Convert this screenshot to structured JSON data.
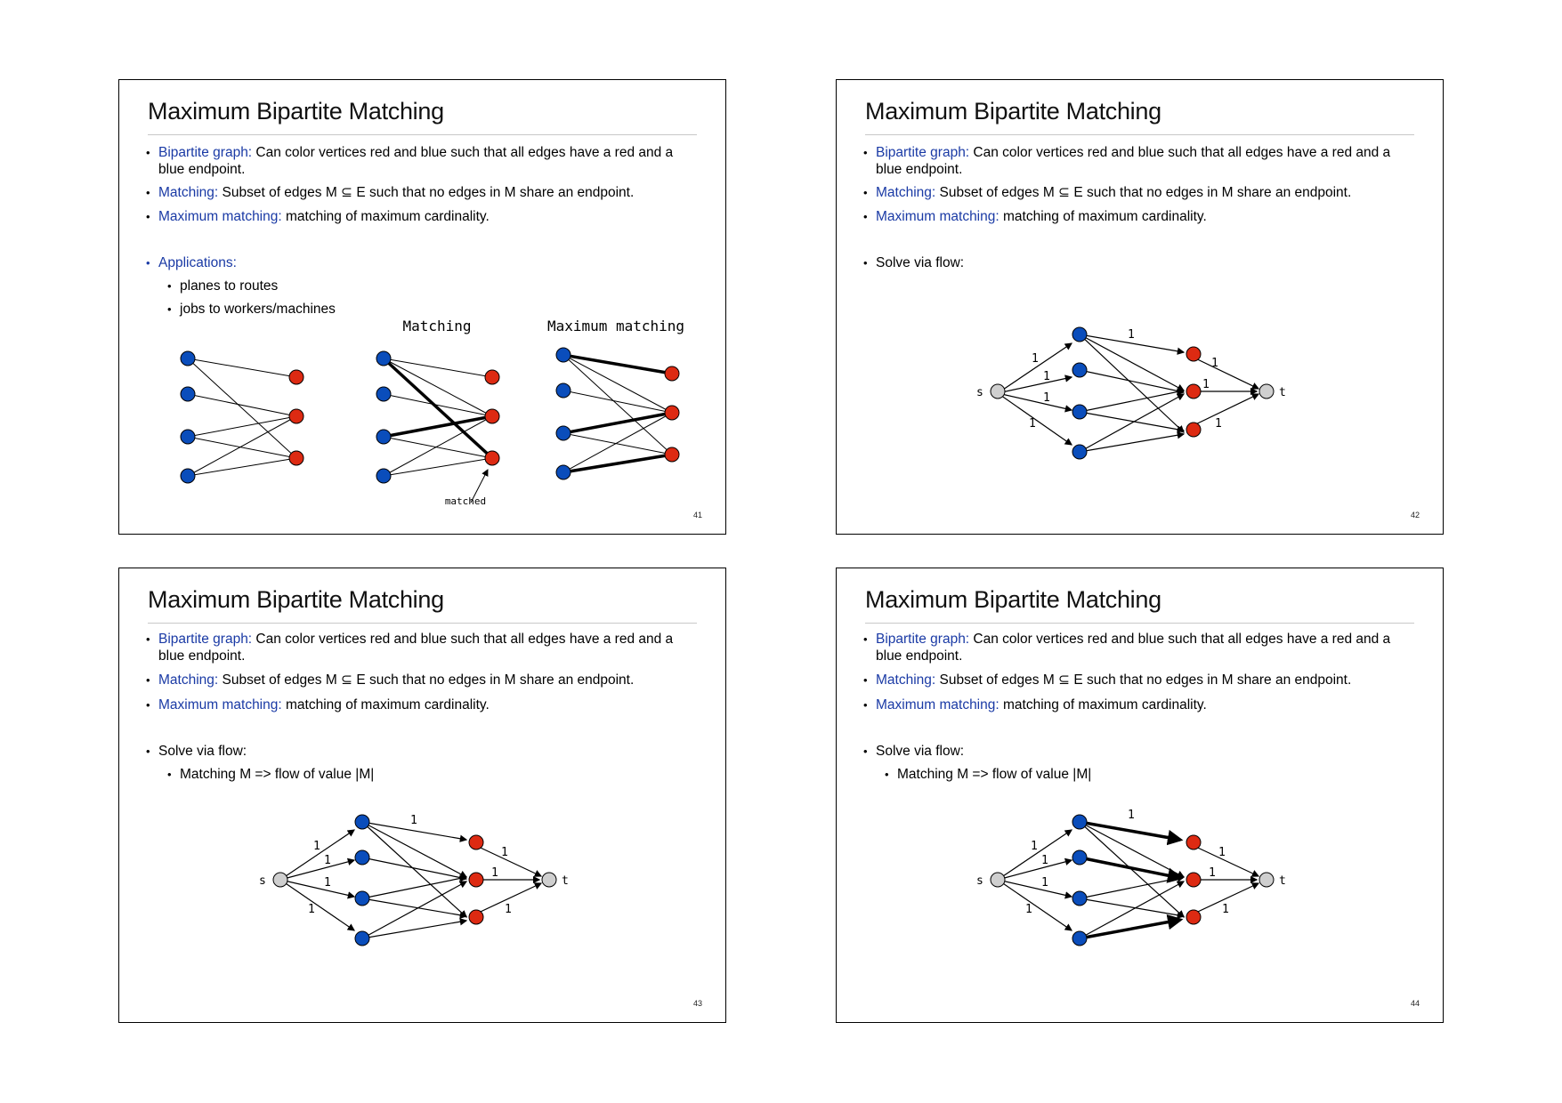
{
  "slides": [
    {
      "title": "Maximum Bipartite Matching",
      "page": "41",
      "bullets": [
        {
          "term": "Bipartite graph:",
          "rest": " Can color vertices red and blue such that all edges have a red and a blue endpoint."
        },
        {
          "term": "Matching:",
          "rest": " Subset of edges M ⊆ E such that no edges in M share an endpoint."
        },
        {
          "term": "Maximum matching:",
          "rest": " matching of maximum cardinality."
        }
      ],
      "section": {
        "term": "Applications:",
        "rest": ""
      },
      "subs": [
        "planes to routes",
        "jobs to workers/machines"
      ],
      "figure_labels": {
        "matching": "Matching",
        "maximum": "Maximum matching",
        "matched": "matched"
      }
    },
    {
      "title": "Maximum Bipartite Matching",
      "page": "42",
      "bullets": [
        {
          "term": "Bipartite graph:",
          "rest": " Can color vertices red and blue such that all edges have a red and a blue endpoint."
        },
        {
          "term": "Matching:",
          "rest": " Subset of edges M ⊆ E such that no edges in M share an endpoint."
        },
        {
          "term": "Maximum matching:",
          "rest": " matching of maximum cardinality."
        }
      ],
      "section": {
        "term": "",
        "rest": "Solve via flow:"
      },
      "subs": []
    },
    {
      "title": "Maximum Bipartite Matching",
      "page": "43",
      "bullets": [
        {
          "term": "Bipartite graph:",
          "rest": " Can color vertices red and blue such that all edges have a red and a blue endpoint."
        },
        {
          "term": "Matching:",
          "rest": " Subset of edges M ⊆ E such that no edges in M share an endpoint."
        },
        {
          "term": "Maximum matching:",
          "rest": " matching of maximum cardinality."
        }
      ],
      "section": {
        "term": "",
        "rest": "Solve via flow:"
      },
      "subs": [
        "Matching M => flow of value |M|"
      ]
    },
    {
      "title": "Maximum Bipartite Matching",
      "page": "44",
      "bullets": [
        {
          "term": "Bipartite graph:",
          "rest": " Can color vertices red and blue such that all edges have a red and a blue endpoint."
        },
        {
          "term": "Matching:",
          "rest": " Subset of edges M ⊆ E such that no edges in M share an endpoint."
        },
        {
          "term": "Maximum matching:",
          "rest": " matching of maximum cardinality."
        }
      ],
      "section": {
        "term": "",
        "rest": "Solve via flow:"
      },
      "subs": [
        "Matching M => flow of value |M|"
      ]
    }
  ],
  "flow": {
    "source": "s",
    "sink": "t",
    "capacity": "1"
  },
  "colors": {
    "blue": "#0a4dbb",
    "red": "#dd2a12",
    "gray": "#cfcfcf",
    "term": "#1a3aa5"
  }
}
